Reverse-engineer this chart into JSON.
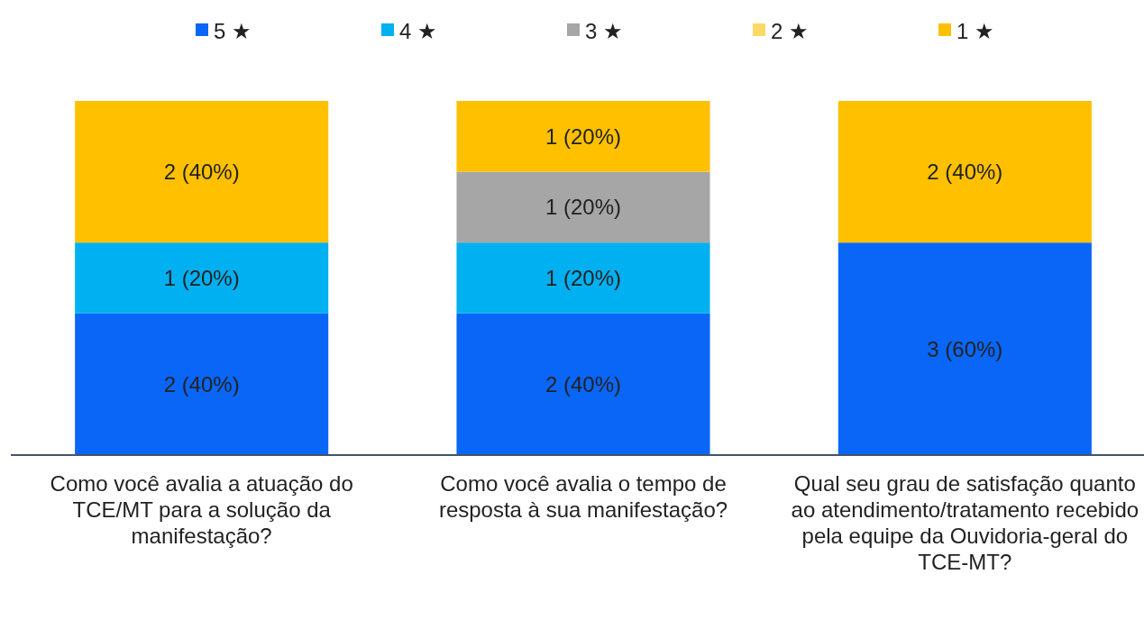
{
  "chart_data": {
    "type": "bar",
    "stacked": true,
    "legend": "top",
    "categories": [
      "Como você avalia a atuação do TCE/MT para a solução da manifestação?",
      "Como você avalia o tempo de resposta à sua manifestação?",
      "Qual seu grau de satisfação quanto ao atendimento/tratamento recebido pela equipe da Ouvidoria-geral do TCE-MT?"
    ],
    "series": [
      {
        "name": "5 ★",
        "color": "#0a66f7",
        "values": [
          2,
          2,
          3
        ],
        "value_labels": [
          "2 (40%)",
          "2 (40%)",
          "3 (60%)"
        ]
      },
      {
        "name": "4 ★",
        "color": "#00b0f0",
        "values": [
          1,
          1,
          0
        ],
        "value_labels": [
          "1 (20%)",
          "1 (20%)",
          null
        ]
      },
      {
        "name": "3 ★",
        "color": "#a6a6a6",
        "values": [
          0,
          1,
          0
        ],
        "value_labels": [
          null,
          "1 (20%)",
          null
        ]
      },
      {
        "name": "2 ★",
        "color": "#ffd966",
        "values": [
          0,
          0,
          0
        ],
        "value_labels": [
          null,
          null,
          null
        ]
      },
      {
        "name": "1 ★",
        "color": "#ffc000",
        "values": [
          2,
          1,
          2
        ],
        "value_labels": [
          "2 (40%)",
          "1 (20%)",
          "2 (40%)"
        ]
      }
    ]
  }
}
